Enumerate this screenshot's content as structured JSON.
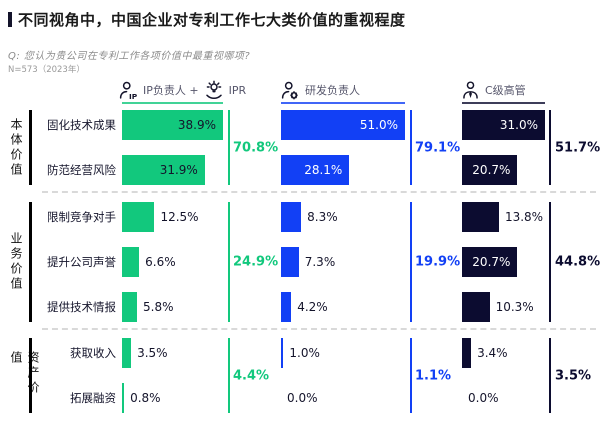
{
  "header": {
    "title": "不同视角中，中国企业对专利工作七大类价值的重视程度",
    "question": "Q: 您认为贵公司在专利工作各项价值中最重视哪项?",
    "sample_note": "N=573（2023年）"
  },
  "chart_data": {
    "type": "bar",
    "orientation": "horizontal",
    "unit": "%",
    "title": "不同视角中，中国企业对专利工作七大类价值的重视程度",
    "question": "Q: 您认为贵公司在专利工作各项价值中最重视哪项?",
    "sample_note": "N=573（2023年）",
    "columns": [
      {
        "key": "ip",
        "legend_part1": "IP负责人 +",
        "legend_part2": "IPR",
        "icon": "person-ip-icon",
        "icon2": "bulb-hand-icon",
        "color": "#12C87D",
        "inside_text_color": "#14142B"
      },
      {
        "key": "rnd",
        "legend_label": "研发负责人",
        "icon": "person-gear-icon",
        "color": "#1240F5",
        "inside_text_color": "#FFFFFF"
      },
      {
        "key": "cxo",
        "legend_label": "C级高管",
        "icon": "person-tie-icon",
        "color": "#0C0C30",
        "inside_text_color": "#FFFFFF"
      }
    ],
    "groups": [
      {
        "label": "本体价值",
        "rows": [
          {
            "label": "固化技术成果",
            "values": [
              38.9,
              51.0,
              31.0
            ]
          },
          {
            "label": "防范经营风险",
            "values": [
              31.9,
              28.1,
              20.7
            ]
          }
        ],
        "subtotals": [
          "70.8%",
          "79.1%",
          "51.7%"
        ]
      },
      {
        "label": "业务价值",
        "rows": [
          {
            "label": "限制竞争对手",
            "values": [
              12.5,
              8.3,
              13.8
            ]
          },
          {
            "label": "提升公司声誉",
            "values": [
              6.6,
              7.3,
              20.7
            ]
          },
          {
            "label": "提供技术情报",
            "values": [
              5.8,
              4.2,
              10.3
            ]
          }
        ],
        "subtotals": [
          "24.9%",
          "19.9%",
          "44.8%"
        ]
      },
      {
        "label": "资产价值",
        "rows": [
          {
            "label": "获取收入",
            "values": [
              3.5,
              1.0,
              3.4
            ]
          },
          {
            "label": "拓展融资",
            "values": [
              0.8,
              0.0,
              0.0
            ]
          }
        ],
        "subtotals": [
          "4.4%",
          "1.1%",
          "3.5%"
        ]
      }
    ]
  }
}
